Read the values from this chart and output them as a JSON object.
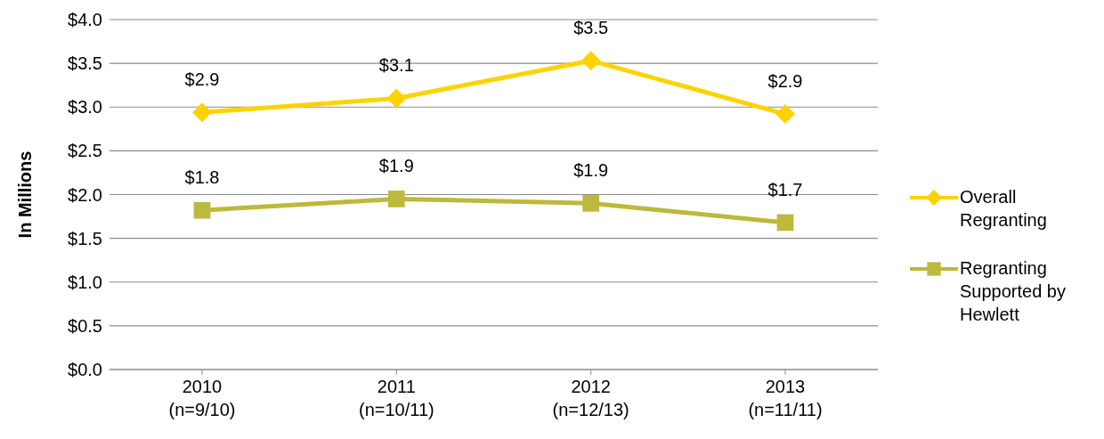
{
  "chart_data": {
    "type": "line",
    "ylabel": "In Millions",
    "categories": [
      "2010\n(n=9/10)",
      "2011\n(n=10/11)",
      "2012\n(n=12/13)",
      "2013\n(n=11/11)"
    ],
    "series": [
      {
        "name": "Overall Regranting",
        "color": "#ffd200",
        "values": [
          2.94,
          3.1,
          3.53,
          2.92
        ],
        "value_labels": [
          "$2.9",
          "$3.1",
          "$3.5",
          "$2.9"
        ],
        "marker": "diamond"
      },
      {
        "name": "Regranting Supported by Hewlett",
        "color": "#bcb93c",
        "values": [
          1.82,
          1.95,
          1.9,
          1.68
        ],
        "value_labels": [
          "$1.8",
          "$1.9",
          "$1.9",
          "$1.7"
        ],
        "marker": "square"
      }
    ],
    "ylim": [
      0,
      4
    ],
    "yticks": [
      {
        "value": 0,
        "label": "$0.0"
      },
      {
        "value": 0.5,
        "label": "$0.5"
      },
      {
        "value": 1,
        "label": "$1.0"
      },
      {
        "value": 1.5,
        "label": "$1.5"
      },
      {
        "value": 2,
        "label": "$2.0"
      },
      {
        "value": 2.5,
        "label": "$2.5"
      },
      {
        "value": 3,
        "label": "$3.0"
      },
      {
        "value": 3.5,
        "label": "$3.5"
      },
      {
        "value": 4,
        "label": "$4.0"
      }
    ],
    "grid": "y",
    "legend": "right",
    "line_style": "solid"
  }
}
